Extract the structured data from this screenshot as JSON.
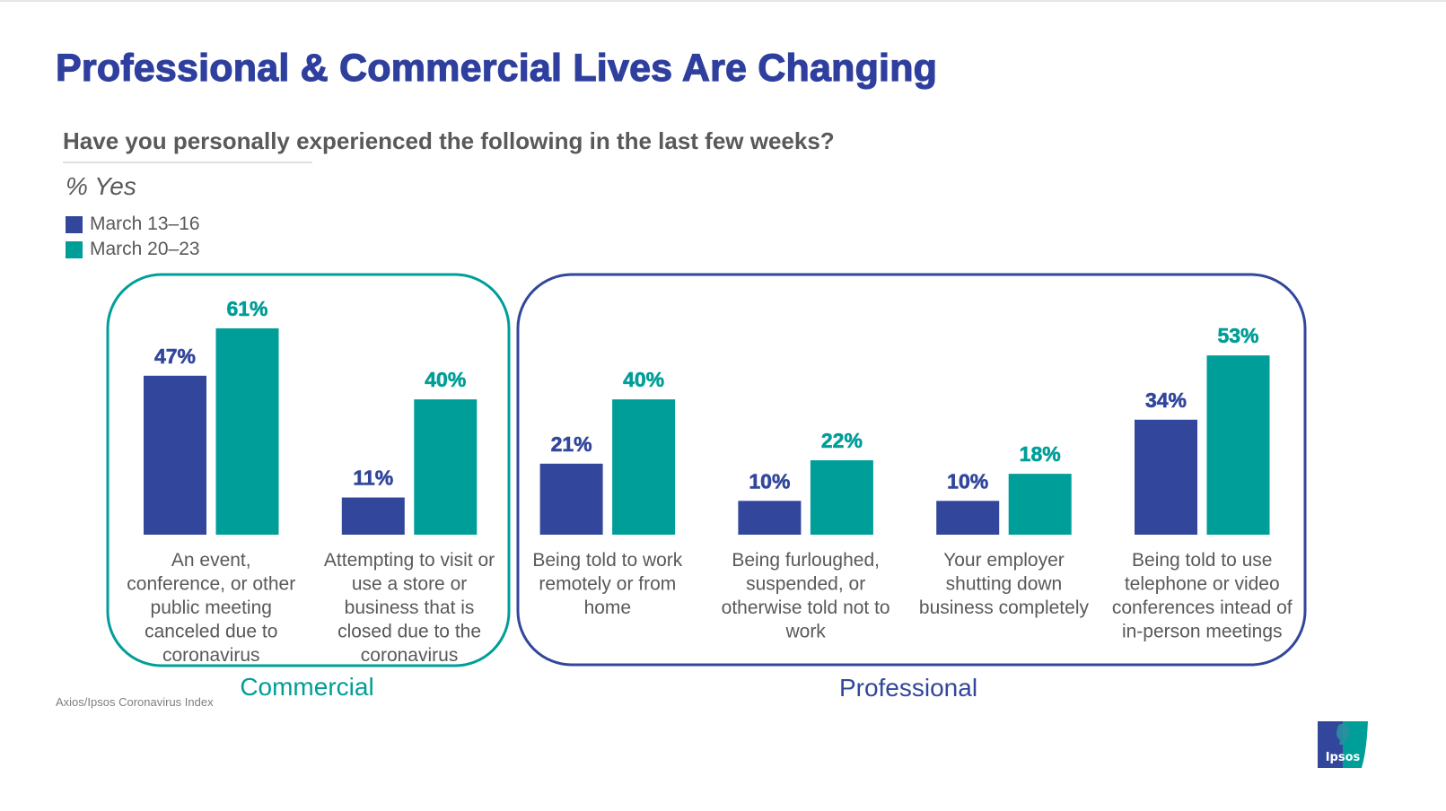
{
  "title": "Professional & Commercial Lives Are Changing",
  "question": "Have you personally experienced the following in the last few weeks?",
  "subtitle": "% Yes",
  "source": "Axios/Ipsos Coronavirus Index",
  "logo": {
    "icon": "ipsos-logo-icon",
    "text": "Ipsos"
  },
  "colors": {
    "series1": "#32479c",
    "series2": "#009e99",
    "title": "#2e3f9e",
    "text": "#595959"
  },
  "legend": [
    {
      "label": "March 13–16",
      "color": "#32479c"
    },
    {
      "label": "March 20–23",
      "color": "#009e99"
    }
  ],
  "chart_data": {
    "type": "bar",
    "title": "Professional & Commercial Lives Are Changing",
    "subtitle": "Have you personally experienced the following in the last few weeks?",
    "ylabel": "% Yes",
    "xlabel": "",
    "ylim": [
      0,
      65
    ],
    "grid": false,
    "legend_position": "top-left",
    "categories": [
      [
        "An event,",
        "conference, or other",
        "public meeting",
        "canceled due to",
        "coronavirus"
      ],
      [
        "Attempting to visit or",
        "use a store or",
        "business that is",
        "closed due to the",
        "coronavirus"
      ],
      [
        "Being told to work",
        "remotely or from",
        "home"
      ],
      [
        "Being furloughed,",
        "suspended, or",
        "otherwise told not to",
        "work"
      ],
      [
        "Your employer",
        "shutting down",
        "business completely"
      ],
      [
        "Being told to use",
        "telephone or video",
        "conferences intead of",
        "in-person meetings"
      ]
    ],
    "series": [
      {
        "name": "March 13–16",
        "color": "#32479c",
        "values": [
          47,
          11,
          21,
          10,
          10,
          34
        ],
        "labels": [
          "47%",
          "11%",
          "21%",
          "10%",
          "10%",
          "34%"
        ]
      },
      {
        "name": "March 20–23",
        "color": "#009e99",
        "values": [
          61,
          40,
          40,
          22,
          18,
          53
        ],
        "labels": [
          "61%",
          "40%",
          "40%",
          "22%",
          "18%",
          "53%"
        ]
      }
    ],
    "groups": [
      {
        "name": "Commercial",
        "color": "#009e99",
        "category_indices": [
          0,
          1
        ]
      },
      {
        "name": "Professional",
        "color": "#32479c",
        "category_indices": [
          2,
          3,
          4,
          5
        ]
      }
    ]
  }
}
